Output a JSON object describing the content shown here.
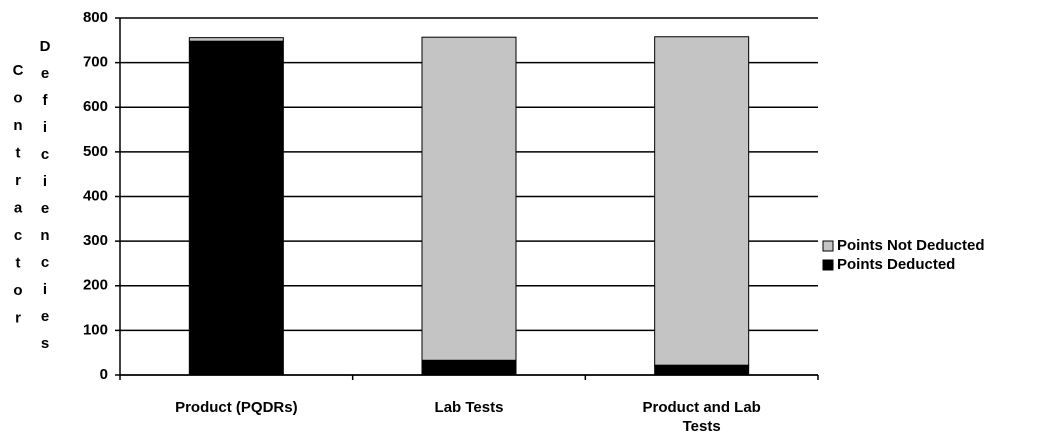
{
  "chart_data": {
    "type": "stacked_bar",
    "ylabel": [
      "Contractor",
      "Deficiencies"
    ],
    "categories": [
      "Product (PQDRs)",
      "Lab Tests",
      "Product and Lab Tests"
    ],
    "series": [
      {
        "name": "Points Deducted",
        "color": "#000000",
        "values": [
          748,
          33,
          22
        ]
      },
      {
        "name": "Points Not Deducted",
        "color": "#c4c4c4",
        "values": [
          8,
          724,
          736
        ]
      }
    ],
    "ylim": [
      0,
      800
    ],
    "yticks": [
      0,
      100,
      200,
      300,
      400,
      500,
      600,
      700,
      800
    ],
    "grid": true,
    "legend": "right"
  }
}
